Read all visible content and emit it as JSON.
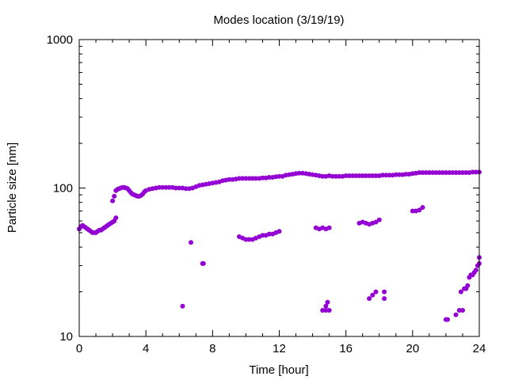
{
  "chart_data": {
    "type": "scatter",
    "title": "Modes location (3/19/19)",
    "xlabel": "Time [hour]",
    "ylabel": "Particle size [nm]",
    "xlim": [
      0,
      24
    ],
    "ylim": [
      10,
      1000
    ],
    "yscale": "log",
    "grid": false,
    "x_ticks": [
      0,
      4,
      8,
      12,
      16,
      20,
      24
    ],
    "x_tick_labels": [
      "0",
      "4",
      "8",
      "12",
      "16",
      "20",
      "24"
    ],
    "y_ticks": [
      10,
      100,
      1000
    ],
    "y_tick_labels": [
      "10",
      "100",
      "1000"
    ],
    "marker_color": "#9400d3",
    "series": [
      {
        "points": [
          [
            0.0,
            53
          ],
          [
            0.1,
            55
          ],
          [
            0.2,
            56
          ],
          [
            0.3,
            55
          ],
          [
            0.4,
            54
          ],
          [
            0.5,
            53
          ],
          [
            0.6,
            52
          ],
          [
            0.7,
            51
          ],
          [
            0.8,
            50
          ],
          [
            0.9,
            50
          ],
          [
            1.0,
            50
          ],
          [
            1.1,
            51
          ],
          [
            1.2,
            52
          ],
          [
            1.3,
            52
          ],
          [
            1.4,
            53
          ],
          [
            1.5,
            54
          ],
          [
            1.6,
            55
          ],
          [
            1.7,
            56
          ],
          [
            1.8,
            57
          ],
          [
            1.9,
            58
          ],
          [
            2.0,
            59
          ],
          [
            2.1,
            60
          ],
          [
            2.2,
            63
          ],
          [
            2.0,
            82
          ],
          [
            2.1,
            88
          ],
          [
            2.2,
            96
          ],
          [
            2.3,
            98
          ],
          [
            2.4,
            99
          ],
          [
            2.5,
            100
          ],
          [
            2.6,
            101
          ],
          [
            2.7,
            101
          ],
          [
            2.8,
            100
          ],
          [
            2.9,
            99
          ],
          [
            3.0,
            96
          ],
          [
            3.1,
            93
          ],
          [
            3.2,
            91
          ],
          [
            3.3,
            90
          ],
          [
            3.4,
            89
          ],
          [
            3.5,
            88
          ],
          [
            3.6,
            88
          ],
          [
            3.7,
            89
          ],
          [
            3.8,
            91
          ],
          [
            3.9,
            94
          ],
          [
            4.0,
            96
          ],
          [
            4.2,
            98
          ],
          [
            4.4,
            99
          ],
          [
            4.6,
            100
          ],
          [
            4.8,
            101
          ],
          [
            5.0,
            101
          ],
          [
            5.2,
            101
          ],
          [
            5.4,
            101
          ],
          [
            5.6,
            101
          ],
          [
            5.8,
            100
          ],
          [
            6.0,
            100
          ],
          [
            6.2,
            100
          ],
          [
            6.4,
            99
          ],
          [
            6.6,
            99
          ],
          [
            6.8,
            100
          ],
          [
            7.0,
            102
          ],
          [
            7.2,
            104
          ],
          [
            7.4,
            105
          ],
          [
            7.6,
            106
          ],
          [
            7.8,
            107
          ],
          [
            8.0,
            108
          ],
          [
            8.2,
            109
          ],
          [
            8.4,
            110
          ],
          [
            8.6,
            112
          ],
          [
            8.8,
            113
          ],
          [
            9.0,
            114
          ],
          [
            9.2,
            114
          ],
          [
            9.4,
            115
          ],
          [
            9.6,
            116
          ],
          [
            9.8,
            116
          ],
          [
            10.0,
            116
          ],
          [
            10.2,
            116
          ],
          [
            10.4,
            116
          ],
          [
            10.6,
            116
          ],
          [
            10.8,
            116
          ],
          [
            11.0,
            117
          ],
          [
            11.2,
            117
          ],
          [
            11.4,
            118
          ],
          [
            11.6,
            118
          ],
          [
            11.8,
            119
          ],
          [
            12.0,
            120
          ],
          [
            12.2,
            120
          ],
          [
            12.4,
            122
          ],
          [
            12.6,
            123
          ],
          [
            12.8,
            124
          ],
          [
            13.0,
            125
          ],
          [
            13.2,
            126
          ],
          [
            13.4,
            126
          ],
          [
            13.6,
            125
          ],
          [
            13.8,
            124
          ],
          [
            14.0,
            123
          ],
          [
            14.2,
            122
          ],
          [
            14.4,
            121
          ],
          [
            14.6,
            120
          ],
          [
            14.8,
            120
          ],
          [
            15.0,
            121
          ],
          [
            15.2,
            120
          ],
          [
            15.4,
            120
          ],
          [
            15.6,
            120
          ],
          [
            15.8,
            120
          ],
          [
            16.0,
            121
          ],
          [
            16.2,
            121
          ],
          [
            16.4,
            121
          ],
          [
            16.6,
            121
          ],
          [
            16.8,
            121
          ],
          [
            17.0,
            121
          ],
          [
            17.2,
            121
          ],
          [
            17.4,
            121
          ],
          [
            17.6,
            121
          ],
          [
            17.8,
            121
          ],
          [
            18.0,
            121
          ],
          [
            18.2,
            122
          ],
          [
            18.4,
            122
          ],
          [
            18.6,
            122
          ],
          [
            18.8,
            122
          ],
          [
            19.0,
            123
          ],
          [
            19.2,
            123
          ],
          [
            19.4,
            123
          ],
          [
            19.6,
            124
          ],
          [
            19.8,
            124
          ],
          [
            20.0,
            125
          ],
          [
            20.2,
            126
          ],
          [
            20.4,
            127
          ],
          [
            20.6,
            127
          ],
          [
            20.8,
            127
          ],
          [
            21.0,
            127
          ],
          [
            21.2,
            127
          ],
          [
            21.4,
            127
          ],
          [
            21.6,
            127
          ],
          [
            21.8,
            127
          ],
          [
            22.0,
            127
          ],
          [
            22.2,
            127
          ],
          [
            22.4,
            127
          ],
          [
            22.6,
            127
          ],
          [
            22.8,
            127
          ],
          [
            23.0,
            127
          ],
          [
            23.2,
            127
          ],
          [
            23.4,
            127
          ],
          [
            23.6,
            128
          ],
          [
            23.8,
            128
          ],
          [
            24.0,
            128
          ],
          [
            6.2,
            16
          ],
          [
            6.7,
            43
          ],
          [
            7.4,
            31
          ],
          [
            7.45,
            31
          ],
          [
            9.6,
            47
          ],
          [
            9.8,
            46
          ],
          [
            10.0,
            45
          ],
          [
            10.2,
            45
          ],
          [
            10.4,
            45
          ],
          [
            10.6,
            46
          ],
          [
            10.8,
            47
          ],
          [
            11.0,
            48
          ],
          [
            11.2,
            48
          ],
          [
            11.4,
            49
          ],
          [
            11.6,
            49
          ],
          [
            11.8,
            50
          ],
          [
            12.0,
            51
          ],
          [
            14.2,
            54
          ],
          [
            14.4,
            53
          ],
          [
            14.6,
            54
          ],
          [
            14.8,
            53
          ],
          [
            15.0,
            54
          ],
          [
            14.6,
            15
          ],
          [
            14.8,
            15
          ],
          [
            14.8,
            16
          ],
          [
            14.9,
            17
          ],
          [
            15.0,
            15
          ],
          [
            16.8,
            58
          ],
          [
            17.0,
            59
          ],
          [
            17.2,
            58
          ],
          [
            17.4,
            57
          ],
          [
            17.6,
            58
          ],
          [
            17.8,
            59
          ],
          [
            18.0,
            61
          ],
          [
            17.4,
            18
          ],
          [
            17.6,
            19
          ],
          [
            17.8,
            20
          ],
          [
            18.3,
            18
          ],
          [
            18.3,
            20
          ],
          [
            20.0,
            70
          ],
          [
            20.2,
            70
          ],
          [
            20.4,
            71
          ],
          [
            20.6,
            74
          ],
          [
            22.0,
            13
          ],
          [
            22.1,
            13
          ],
          [
            22.6,
            14
          ],
          [
            22.8,
            15
          ],
          [
            23.0,
            15
          ],
          [
            22.9,
            20
          ],
          [
            23.1,
            21
          ],
          [
            23.2,
            21
          ],
          [
            23.3,
            22
          ],
          [
            23.4,
            25
          ],
          [
            23.5,
            26
          ],
          [
            23.6,
            26
          ],
          [
            23.7,
            27
          ],
          [
            23.8,
            28
          ],
          [
            23.9,
            30
          ],
          [
            24.0,
            31
          ],
          [
            24.0,
            34
          ]
        ]
      }
    ]
  }
}
